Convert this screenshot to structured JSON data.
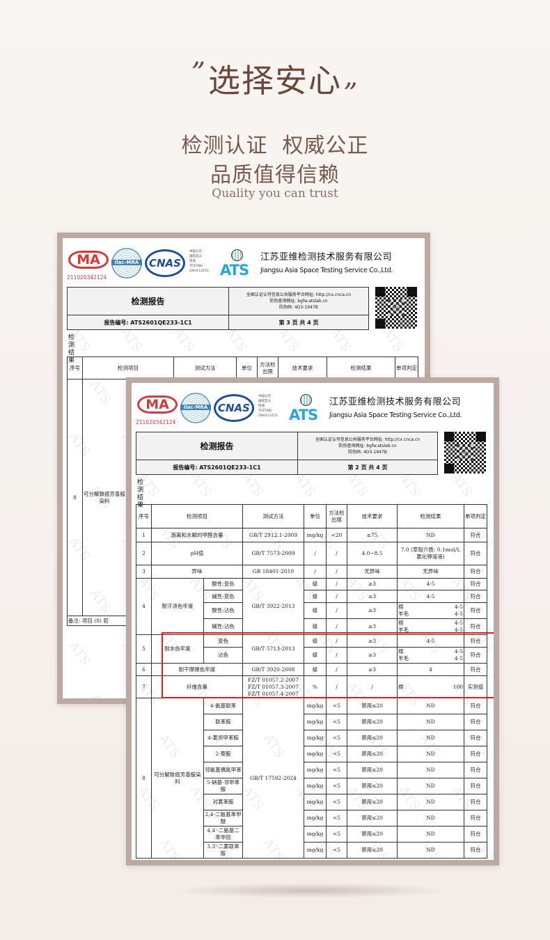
{
  "header": {
    "open_quote": "”",
    "title": "选择安心",
    "close_quote": "”",
    "line1": "检测认证  权威公正",
    "line2": "品质值得信赖",
    "line3": "Quality you can trust"
  },
  "colors": {
    "text": "#6a463b",
    "frame": "#baaaa2",
    "highlight": "#e01b1b"
  },
  "common": {
    "cma": "MA",
    "cma_number": "211020342124",
    "ilac": "ilac-MRA",
    "cnas": "CNAS",
    "cnas_text": [
      "中国认可",
      "国际互认",
      "检测",
      "TESTING",
      "CNAS L5155"
    ],
    "ats": "ATS",
    "company_cn": "江苏亚维检测技术服务有限公司",
    "company_en": "Jiangsu Asia Space Testing Service Co.,Ltd.",
    "report_title": "检测报告",
    "info_line1": "全国认证认可信息公共服务平台网址: http://cx.cnca.cn",
    "info_line2": "防伪查询网址: bgfw.atslab.cn",
    "info_line3": "防伪码: 4D3-1947B",
    "report_no": "报告编号: ATS2601QE233-1C1",
    "results_label": "检测结果",
    "watermark": "ATS",
    "columns": [
      "序号",
      "检测项目",
      "测试方法",
      "单位",
      "方法检出限",
      "技术要求",
      "检测结果",
      "单项判定"
    ]
  },
  "doc_back": {
    "page": "第 3 页 共 4 页",
    "row_no": "8",
    "row_item": "可分解致癌芳香胺染料",
    "note": "备注:    项目 (8) 若"
  },
  "doc_front": {
    "page": "第 2 页 共 4 页",
    "rows": [
      {
        "no": "1",
        "item": "游离和水解的甲醛含量",
        "method": "GB/T 2912.1-2009",
        "unit": "mg/kg",
        "limit": "<20",
        "req": "≤75",
        "result": "ND",
        "verdict": "符合"
      },
      {
        "no": "2",
        "item": "pH值",
        "method": "GB/T 7573-2009",
        "unit": "/",
        "limit": "/",
        "req": "4.0~8.5",
        "result": "7.0 (萃取介质: 0.1mol/L 氯化钾溶液)",
        "verdict": "符合"
      },
      {
        "no": "3",
        "item": "异味",
        "method": "GB 18401-2010",
        "unit": "/",
        "limit": "/",
        "req": "无异味",
        "result": "无异味",
        "verdict": "符合"
      },
      {
        "no": "4",
        "item": "耐汗渍色牢度",
        "method": "GB/T 3922-2013",
        "subs": [
          {
            "sub": "酸性:变色",
            "unit": "级",
            "limit": "/",
            "req": "≥3",
            "result": "4-5",
            "verdict": "符合"
          },
          {
            "sub": "碱性:变色",
            "unit": "级",
            "limit": "/",
            "req": "≥3",
            "result": "4-5",
            "verdict": "符合"
          },
          {
            "sub": "酸性:沾色",
            "unit": "级",
            "limit": "/",
            "req": "≥3",
            "result_pairs": [
              [
                "棉",
                "4-5"
              ],
              [
                "羊毛",
                "4-5"
              ]
            ],
            "verdict": "符合"
          },
          {
            "sub": "碱性:沾色",
            "unit": "级",
            "limit": "/",
            "req": "≥3",
            "result_pairs": [
              [
                "棉",
                "4-5"
              ],
              [
                "羊毛",
                "4-5"
              ]
            ],
            "verdict": "符合"
          }
        ]
      },
      {
        "no": "5",
        "item": "耐水色牢度",
        "method": "GB/T 5713-2013",
        "subs": [
          {
            "sub": "变色",
            "unit": "级",
            "limit": "/",
            "req": "≥3",
            "result": "4-5",
            "verdict": "符合"
          },
          {
            "sub": "沾色",
            "unit": "级",
            "limit": "/",
            "req": "≥3",
            "result_pairs": [
              [
                "棉",
                "4-5"
              ],
              [
                "羊毛",
                "4-5"
              ]
            ],
            "verdict": "符合"
          }
        ]
      },
      {
        "no": "6",
        "item": "耐干摩擦色牢度",
        "method": "GB/T 3920-2008",
        "unit": "级",
        "limit": "/",
        "req": "≥3",
        "result": "4",
        "verdict": "符合"
      },
      {
        "no": "7",
        "item": "纤维含量",
        "method": "FZ/T 01057.2-2007 FZ/T 01057.3-2007 FZ/T 01057.4-2007",
        "unit": "%",
        "limit": "/",
        "req": "/",
        "result_pairs": [
          [
            "棉",
            "100"
          ]
        ],
        "verdict": "实测值"
      },
      {
        "no": "8",
        "item": "可分解致癌芳香胺染料",
        "method": "GB/T 17592-2024",
        "subs": [
          {
            "sub": "4-氨基联苯",
            "unit": "mg/kg",
            "limit": "<5",
            "req": "禁用≤20",
            "result": "ND",
            "verdict": "符合"
          },
          {
            "sub": "联苯胺",
            "unit": "mg/kg",
            "limit": "<5",
            "req": "禁用≤20",
            "result": "ND",
            "verdict": "符合"
          },
          {
            "sub": "4-氯邻甲苯胺",
            "unit": "mg/kg",
            "limit": "<5",
            "req": "禁用≤20",
            "result": "ND",
            "verdict": "符合"
          },
          {
            "sub": "2-萘胺",
            "unit": "mg/kg",
            "limit": "<5",
            "req": "禁用≤20",
            "result": "ND",
            "verdict": "符合"
          },
          {
            "sub": "邻氨基偶氮甲苯",
            "unit": "mg/kg",
            "limit": "<5",
            "req": "禁用≤20",
            "result": "ND",
            "verdict": "符合"
          },
          {
            "sub": "5-硝基-邻甲苯胺",
            "unit": "mg/kg",
            "limit": "<5",
            "req": "禁用≤20",
            "result": "ND",
            "verdict": "符合"
          },
          {
            "sub": "对氯苯胺",
            "unit": "mg/kg",
            "limit": "<5",
            "req": "禁用≤20",
            "result": "ND",
            "verdict": "符合"
          },
          {
            "sub": "2,4-二氨基苯甲醚",
            "unit": "mg/kg",
            "limit": "<5",
            "req": "禁用≤20",
            "result": "ND",
            "verdict": "符合"
          },
          {
            "sub": "4,4'-二氨基二苯甲烷",
            "unit": "mg/kg",
            "limit": "<5",
            "req": "禁用≤20",
            "result": "ND",
            "verdict": "符合"
          },
          {
            "sub": "3,3'-二氯联苯胺",
            "unit": "mg/kg",
            "limit": "<5",
            "req": "禁用≤20",
            "result": "ND",
            "verdict": "符合"
          }
        ]
      }
    ]
  }
}
